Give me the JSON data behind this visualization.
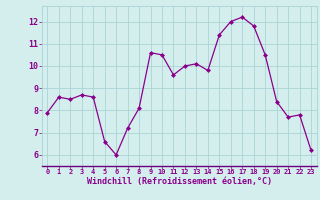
{
  "x": [
    0,
    1,
    2,
    3,
    4,
    5,
    6,
    7,
    8,
    9,
    10,
    11,
    12,
    13,
    14,
    15,
    16,
    17,
    18,
    19,
    20,
    21,
    22,
    23
  ],
  "y": [
    7.9,
    8.6,
    8.5,
    8.7,
    8.6,
    6.6,
    6.0,
    7.2,
    8.1,
    10.6,
    10.5,
    9.6,
    10.0,
    10.1,
    9.8,
    11.4,
    12.0,
    12.2,
    11.8,
    10.5,
    8.4,
    7.7,
    7.8,
    6.2
  ],
  "line_color": "#8b008b",
  "marker": "D",
  "marker_size": 2.0,
  "bg_color": "#d4eeee",
  "grid_color": "#aad4d4",
  "xlabel": "Windchill (Refroidissement éolien,°C)",
  "xlabel_color": "#8b008b",
  "tick_color": "#8b008b",
  "ylim": [
    5.5,
    12.7
  ],
  "xlim": [
    -0.5,
    23.5
  ],
  "yticks": [
    6,
    7,
    8,
    9,
    10,
    11,
    12
  ],
  "xticks": [
    0,
    1,
    2,
    3,
    4,
    5,
    6,
    7,
    8,
    9,
    10,
    11,
    12,
    13,
    14,
    15,
    16,
    17,
    18,
    19,
    20,
    21,
    22,
    23
  ]
}
